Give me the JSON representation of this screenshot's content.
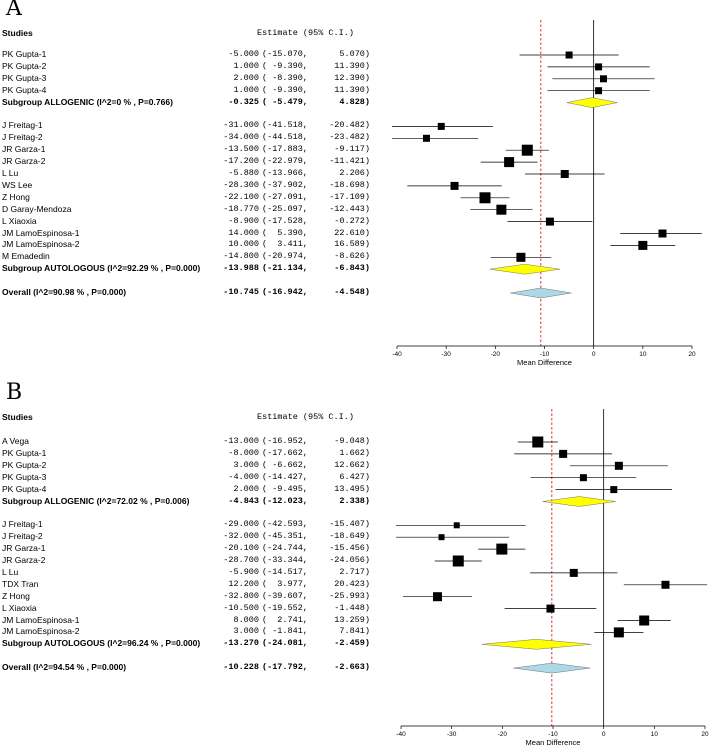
{
  "chart_data": [
    {
      "type": "forest",
      "panel_label": "A",
      "header": {
        "studies": "Studies",
        "estimate": "Estimate (95% C.I.)"
      },
      "xlabel": "Mean Difference",
      "xlim": [
        -40,
        20
      ],
      "xticks": [
        "-40",
        "-30",
        "-20",
        "-10",
        "0",
        "10",
        "20"
      ],
      "overall_reference": -10.745,
      "rows": [
        {
          "label": "PK Gupta-1",
          "est": -5.0,
          "lo": -15.07,
          "hi": 5.07,
          "est_text": "-5.000",
          "ci_text": "(-15.070,",
          "hi_text": "5.070)",
          "kind": "study",
          "size": 7
        },
        {
          "label": "PK Gupta-2",
          "est": 1.0,
          "lo": -9.39,
          "hi": 11.39,
          "est_text": "1.000",
          "ci_text": "( -9.390,",
          "hi_text": "11.390)",
          "kind": "study",
          "size": 7
        },
        {
          "label": "PK Gupta-3",
          "est": 2.0,
          "lo": -8.39,
          "hi": 12.39,
          "est_text": "2.000",
          "ci_text": "( -8.390,",
          "hi_text": "12.390)",
          "kind": "study",
          "size": 7
        },
        {
          "label": "PK Gupta-4",
          "est": 1.0,
          "lo": -9.39,
          "hi": 11.39,
          "est_text": "1.000",
          "ci_text": "( -9.390,",
          "hi_text": "11.390)",
          "kind": "study",
          "size": 7
        },
        {
          "label": "Subgroup ALLOGENIC (I^2=0 % , P=0.766)",
          "est": -0.325,
          "lo": -5.479,
          "hi": 4.828,
          "est_text": "-0.325",
          "ci_text": "( -5.479,",
          "hi_text": "4.828)",
          "kind": "subgroup"
        },
        {
          "kind": "gap"
        },
        {
          "label": "J Freitag-1",
          "est": -31.0,
          "lo": -41.518,
          "hi": -20.482,
          "est_text": "-31.000",
          "ci_text": "(-41.518,",
          "hi_text": "-20.482)",
          "kind": "study",
          "size": 7
        },
        {
          "label": "J Freitag-2",
          "est": -34.0,
          "lo": -44.518,
          "hi": -23.482,
          "est_text": "-34.000",
          "ci_text": "(-44.518,",
          "hi_text": "-23.482)",
          "kind": "study",
          "size": 7
        },
        {
          "label": "JR Garza-1",
          "est": -13.5,
          "lo": -17.883,
          "hi": -9.117,
          "est_text": "-13.500",
          "ci_text": "(-17.883,",
          "hi_text": "-9.117)",
          "kind": "study",
          "size": 11
        },
        {
          "label": "JR Garza-2",
          "est": -17.2,
          "lo": -22.979,
          "hi": -11.421,
          "est_text": "-17.200",
          "ci_text": "(-22.979,",
          "hi_text": "-11.421)",
          "kind": "study",
          "size": 10
        },
        {
          "label": "L Lu",
          "est": -5.88,
          "lo": -13.966,
          "hi": 2.206,
          "est_text": "-5.880",
          "ci_text": "(-13.966,",
          "hi_text": "2.206)",
          "kind": "study",
          "size": 8
        },
        {
          "label": "WS Lee",
          "est": -28.3,
          "lo": -37.902,
          "hi": -18.698,
          "est_text": "-28.300",
          "ci_text": "(-37.902,",
          "hi_text": "-18.698)",
          "kind": "study",
          "size": 8
        },
        {
          "label": "Z Hong",
          "est": -22.1,
          "lo": -27.091,
          "hi": -17.109,
          "est_text": "-22.100",
          "ci_text": "(-27.091,",
          "hi_text": "-17.109)",
          "kind": "study",
          "size": 11
        },
        {
          "label": "D Garay-Mendoza",
          "est": -18.77,
          "lo": -25.097,
          "hi": -12.443,
          "est_text": "-18.770",
          "ci_text": "(-25.097,",
          "hi_text": "-12.443)",
          "kind": "study",
          "size": 10
        },
        {
          "label": "L Xiaoxia",
          "est": -8.9,
          "lo": -17.528,
          "hi": -0.272,
          "est_text": "-8.900",
          "ci_text": "(-17.528,",
          "hi_text": "-0.272)",
          "kind": "study",
          "size": 8
        },
        {
          "label": "JM LamoEspinosa-1",
          "est": 14.0,
          "lo": 5.39,
          "hi": 22.61,
          "est_text": "14.000",
          "ci_text": "(  5.390,",
          "hi_text": "22.610)",
          "kind": "study",
          "size": 8
        },
        {
          "label": "JM LamoEspinosa-2",
          "est": 10.0,
          "lo": 3.411,
          "hi": 16.589,
          "est_text": "10.000",
          "ci_text": "(  3.411,",
          "hi_text": "16.589)",
          "kind": "study",
          "size": 9
        },
        {
          "label": "M Emadedin",
          "est": -14.8,
          "lo": -20.974,
          "hi": -8.626,
          "est_text": "-14.800",
          "ci_text": "(-20.974,",
          "hi_text": "-8.626)",
          "kind": "study",
          "size": 9
        },
        {
          "label": "Subgroup AUTOLOGOUS (I^2=92.29 % , P=0.000)",
          "est": -13.988,
          "lo": -21.134,
          "hi": -6.843,
          "est_text": "-13.988",
          "ci_text": "(-21.134,",
          "hi_text": "-6.843)",
          "kind": "subgroup"
        },
        {
          "kind": "gap"
        },
        {
          "label": "Overall (I^2=90.98 % , P=0.000)",
          "est": -10.745,
          "lo": -16.942,
          "hi": -4.548,
          "est_text": "-10.745",
          "ci_text": "(-16.942,",
          "hi_text": "-4.548)",
          "kind": "overall"
        }
      ]
    },
    {
      "type": "forest",
      "panel_label": "B",
      "header": {
        "studies": "Studies",
        "estimate": "Estimate (95% C.I.)"
      },
      "xlabel": "Mean Difference",
      "xlim": [
        -40,
        20
      ],
      "xticks": [
        "-40",
        "-30",
        "-20",
        "-10",
        "0",
        "10",
        "20"
      ],
      "overall_reference": -10.228,
      "rows": [
        {
          "label": "A Vega",
          "est": -13.0,
          "lo": -16.952,
          "hi": -9.048,
          "est_text": "-13.000",
          "ci_text": "(-16.952,",
          "hi_text": "-9.048)",
          "kind": "study",
          "size": 11
        },
        {
          "label": "PK Gupta-1",
          "est": -8.0,
          "lo": -17.662,
          "hi": 1.662,
          "est_text": "-8.000",
          "ci_text": "(-17.662,",
          "hi_text": "1.662)",
          "kind": "study",
          "size": 8
        },
        {
          "label": "PK Gupta-2",
          "est": 3.0,
          "lo": -6.662,
          "hi": 12.662,
          "est_text": "3.000",
          "ci_text": "( -6.662,",
          "hi_text": "12.662)",
          "kind": "study",
          "size": 8
        },
        {
          "label": "PK Gupta-3",
          "est": -4.0,
          "lo": -14.427,
          "hi": 6.427,
          "est_text": "-4.000",
          "ci_text": "(-14.427,",
          "hi_text": "6.427)",
          "kind": "study",
          "size": 7
        },
        {
          "label": "PK Gupta-4",
          "est": 2.0,
          "lo": -9.495,
          "hi": 13.495,
          "est_text": "2.000",
          "ci_text": "( -9.495,",
          "hi_text": "13.495)",
          "kind": "study",
          "size": 7
        },
        {
          "label": "Subgroup ALLOGENIC (I^2=72.02 % , P=0.006)",
          "est": -4.843,
          "lo": -12.023,
          "hi": 2.338,
          "est_text": "-4.843",
          "ci_text": "(-12.023,",
          "hi_text": "2.338)",
          "kind": "subgroup"
        },
        {
          "kind": "gap"
        },
        {
          "label": "J Freitag-1",
          "est": -29.0,
          "lo": -42.593,
          "hi": -15.407,
          "est_text": "-29.000",
          "ci_text": "(-42.593,",
          "hi_text": "-15.407)",
          "kind": "study",
          "size": 6
        },
        {
          "label": "J Freitag-2",
          "est": -32.0,
          "lo": -45.351,
          "hi": -18.649,
          "est_text": "-32.000",
          "ci_text": "(-45.351,",
          "hi_text": "-18.649)",
          "kind": "study",
          "size": 6
        },
        {
          "label": "JR Garza-1",
          "est": -20.1,
          "lo": -24.744,
          "hi": -15.456,
          "est_text": "-20.100",
          "ci_text": "(-24.744,",
          "hi_text": "-15.456)",
          "kind": "study",
          "size": 11
        },
        {
          "label": "JR Garza-2",
          "est": -28.7,
          "lo": -33.344,
          "hi": -24.056,
          "est_text": "-28.700",
          "ci_text": "(-33.344,",
          "hi_text": "-24.056)",
          "kind": "study",
          "size": 11
        },
        {
          "label": "L Lu",
          "est": -5.9,
          "lo": -14.517,
          "hi": 2.717,
          "est_text": "-5.900",
          "ci_text": "(-14.517,",
          "hi_text": "2.717)",
          "kind": "study",
          "size": 8
        },
        {
          "label": "TDX Tran",
          "est": 12.2,
          "lo": 3.977,
          "hi": 20.423,
          "est_text": "12.200",
          "ci_text": "(  3.977,",
          "hi_text": "20.423)",
          "kind": "study",
          "size": 8
        },
        {
          "label": "Z Hong",
          "est": -32.8,
          "lo": -39.607,
          "hi": -25.993,
          "est_text": "-32.800",
          "ci_text": "(-39.607,",
          "hi_text": "-25.993)",
          "kind": "study",
          "size": 9
        },
        {
          "label": "L Xiaoxia",
          "est": -10.5,
          "lo": -19.552,
          "hi": -1.448,
          "est_text": "-10.500",
          "ci_text": "(-19.552,",
          "hi_text": "-1.448)",
          "kind": "study",
          "size": 8
        },
        {
          "label": "JM LamoEspinosa-1",
          "est": 8.0,
          "lo": 2.741,
          "hi": 13.259,
          "est_text": "8.000",
          "ci_text": "(  2.741,",
          "hi_text": "13.259)",
          "kind": "study",
          "size": 10
        },
        {
          "label": "JM LamoEspinosa-2",
          "est": 3.0,
          "lo": -1.841,
          "hi": 7.841,
          "est_text": "3.000",
          "ci_text": "( -1.841,",
          "hi_text": "7.841)",
          "kind": "study",
          "size": 10
        },
        {
          "label": "Subgroup AUTOLOGOUS (I^2=96.24 % , P=0.000)",
          "est": -13.27,
          "lo": -24.081,
          "hi": -2.459,
          "est_text": "-13.270",
          "ci_text": "(-24.081,",
          "hi_text": "-2.459)",
          "kind": "subgroup"
        },
        {
          "kind": "gap"
        },
        {
          "label": "Overall (I^2=94.54 % , P=0.000)",
          "est": -10.228,
          "lo": -17.792,
          "hi": -2.663,
          "est_text": "-10.228",
          "ci_text": "(-17.792,",
          "hi_text": "-2.663)",
          "kind": "overall"
        }
      ]
    }
  ],
  "colors": {
    "subgroup_diamond": "#ffff00",
    "overall_diamond": "#add8e6",
    "reference_line": "#d40000",
    "study_box": "#000000",
    "axis": "#000000"
  }
}
